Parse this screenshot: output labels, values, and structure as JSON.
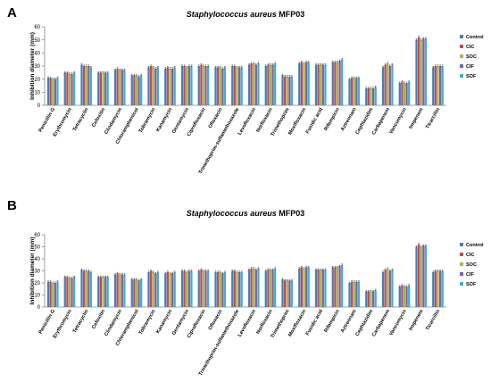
{
  "panels": [
    {
      "letter": "A",
      "title_species": "Staphylococcus aureus",
      "title_strain": "MFP03"
    },
    {
      "letter": "B",
      "title_species": "Staphylococcus aureus",
      "title_strain": "MFP03"
    }
  ],
  "colors": {
    "Control": "#4a7ebb",
    "CIC": "#c0504d",
    "SOC": "#9bbb59",
    "CIF": "#8064a2",
    "SOF": "#4bacc6"
  },
  "chart_data": [
    {
      "type": "bar",
      "title": "Staphylococcus aureus MFP03",
      "ylabel": "Inhibition diameter (mm)",
      "xlabel": "",
      "ylim": [
        0,
        60
      ],
      "yticks": [
        0,
        10,
        20,
        30,
        40,
        50,
        60
      ],
      "grid": false,
      "legend_position": "right",
      "error_bars": true,
      "categories": [
        "Penicillin G",
        "Erythromycin",
        "Tetracyclin",
        "Cefoxitin",
        "Clindamycin",
        "Chloramphenicol",
        "Tobramycin",
        "Kanamycin",
        "Gentamycin",
        "Ciprofloxacin",
        "Ofloxacin",
        "Trimethoprim-sulfamethoxazole",
        "Levofloxacin",
        "Norfloxacin",
        "Trimethoprim",
        "Moxifloxacin",
        "Fusidic acid",
        "Rifampicin",
        "Aztreonam",
        "Cephtazidim",
        "Carbapenem",
        "Vancomycin",
        "Imipenem",
        "Ticarcillin"
      ],
      "series": [
        {
          "name": "Control",
          "values": [
            21,
            25,
            31,
            25,
            27,
            23,
            29,
            28,
            30,
            30,
            29,
            30,
            31,
            30,
            23,
            32,
            31,
            33,
            20,
            13,
            29,
            17,
            50,
            29
          ]
        },
        {
          "name": "CIC",
          "values": [
            21,
            25,
            30,
            25,
            28,
            23,
            30,
            29,
            30,
            31,
            29,
            30,
            32,
            31,
            22,
            33,
            31,
            33,
            21,
            13,
            31,
            18,
            52,
            30
          ]
        },
        {
          "name": "SOC",
          "values": [
            20,
            24,
            30,
            25,
            27,
            23,
            29,
            28,
            29,
            30,
            29,
            29,
            32,
            31,
            22,
            32,
            31,
            33,
            21,
            13,
            32,
            17,
            50,
            30
          ]
        },
        {
          "name": "CIF",
          "values": [
            20,
            24,
            30,
            25,
            27,
            22,
            28,
            28,
            30,
            30,
            28,
            29,
            31,
            31,
            22,
            33,
            31,
            34,
            21,
            13,
            30,
            17,
            51,
            30
          ]
        },
        {
          "name": "SOF",
          "values": [
            21,
            25,
            29,
            25,
            27,
            23,
            29,
            29,
            30,
            30,
            29,
            29,
            32,
            32,
            22,
            33,
            31,
            35,
            21,
            14,
            31,
            18,
            51,
            30
          ]
        }
      ]
    },
    {
      "type": "bar",
      "title": "Staphylococcus aureus MFP03",
      "ylabel": "Inhibition diameter (mm)",
      "xlabel": "",
      "ylim": [
        0,
        60
      ],
      "yticks": [
        0,
        10,
        20,
        30,
        40,
        50,
        60
      ],
      "grid": false,
      "legend_position": "right",
      "error_bars": true,
      "categories": [
        "Penicillin G",
        "Erythromycin",
        "Tetracyclin",
        "Cefoxitin",
        "Clindamycin",
        "Chloramphenicol",
        "Tobramycin",
        "Kanamycin",
        "Gentamycin",
        "Ciprofloxacin",
        "Ofloxacin",
        "Trimethoprim-sulfamethoxazole",
        "Levofloxacin",
        "Norfloxacin",
        "Trimethoprim",
        "Moxifloxacin",
        "Fusidic acid",
        "Rifampicin",
        "Aztreonam",
        "Cephtazidim",
        "Carbapenem",
        "Vancomycin",
        "Imipenem",
        "Ticarcillin"
      ],
      "series": [
        {
          "name": "Control",
          "values": [
            21,
            25,
            31,
            25,
            27,
            23,
            29,
            28,
            30,
            30,
            29,
            30,
            31,
            30,
            23,
            32,
            31,
            33,
            20,
            13,
            29,
            17,
            50,
            29
          ]
        },
        {
          "name": "CIC",
          "values": [
            21,
            25,
            30,
            25,
            28,
            23,
            30,
            29,
            30,
            31,
            29,
            30,
            32,
            31,
            22,
            33,
            31,
            33,
            21,
            13,
            31,
            18,
            52,
            30
          ]
        },
        {
          "name": "SOC",
          "values": [
            20,
            24,
            30,
            25,
            27,
            23,
            29,
            28,
            29,
            30,
            29,
            29,
            32,
            31,
            22,
            32,
            31,
            33,
            21,
            13,
            32,
            17,
            50,
            30
          ]
        },
        {
          "name": "CIF",
          "values": [
            20,
            24,
            30,
            25,
            27,
            22,
            28,
            28,
            30,
            30,
            28,
            29,
            31,
            31,
            22,
            33,
            31,
            34,
            21,
            13,
            30,
            17,
            51,
            30
          ]
        },
        {
          "name": "SOF",
          "values": [
            21,
            25,
            29,
            25,
            27,
            23,
            29,
            29,
            30,
            30,
            29,
            29,
            32,
            32,
            22,
            33,
            31,
            35,
            21,
            14,
            31,
            18,
            51,
            30
          ]
        }
      ]
    }
  ]
}
